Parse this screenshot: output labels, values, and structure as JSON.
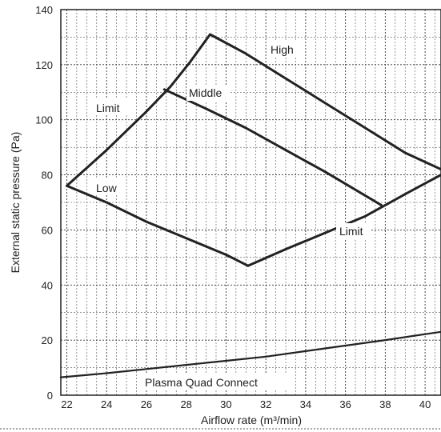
{
  "chart_data": {
    "type": "line",
    "xlabel": "Airflow rate (m³/min)",
    "ylabel": "External static pressure (Pa)",
    "xlim": [
      21.7,
      40.8
    ],
    "ylim": [
      0,
      140
    ],
    "xticks": [
      22,
      24,
      26,
      28,
      30,
      32,
      34,
      36,
      38,
      40
    ],
    "yticks": [
      0,
      20,
      40,
      60,
      80,
      100,
      120,
      140
    ],
    "grid": true,
    "series": [
      {
        "name": "High",
        "x": [
          22,
          24,
          26,
          27.2,
          28.2,
          29.2,
          31,
          33,
          35,
          37,
          39,
          40.8
        ],
        "y": [
          76,
          89,
          103,
          112,
          121,
          131,
          124,
          115,
          106,
          97,
          88,
          82
        ]
      },
      {
        "name": "Middle",
        "x": [
          26.9,
          29,
          31,
          33,
          35,
          37.8
        ],
        "y": [
          111,
          104,
          97,
          89,
          81,
          69
        ]
      },
      {
        "name": "Low",
        "x": [
          22,
          24,
          26,
          28,
          30,
          31.1
        ],
        "y": [
          76,
          70,
          63,
          57,
          51,
          47
        ]
      },
      {
        "name": "Limit",
        "x": [
          31.1,
          33,
          35,
          37,
          39,
          40.8
        ],
        "y": [
          47,
          53,
          59,
          65,
          73,
          80
        ]
      },
      {
        "name": "Plasma Quad Connect",
        "x": [
          21.7,
          24,
          26,
          28,
          30,
          32,
          34,
          36,
          38,
          40.8
        ],
        "y": [
          6.5,
          8,
          9.5,
          11,
          12.5,
          14,
          16,
          18,
          20,
          23
        ]
      }
    ],
    "annotations": [
      "High",
      "Middle",
      "Low",
      "Limit",
      "Limit",
      "Plasma Quad Connect"
    ]
  }
}
